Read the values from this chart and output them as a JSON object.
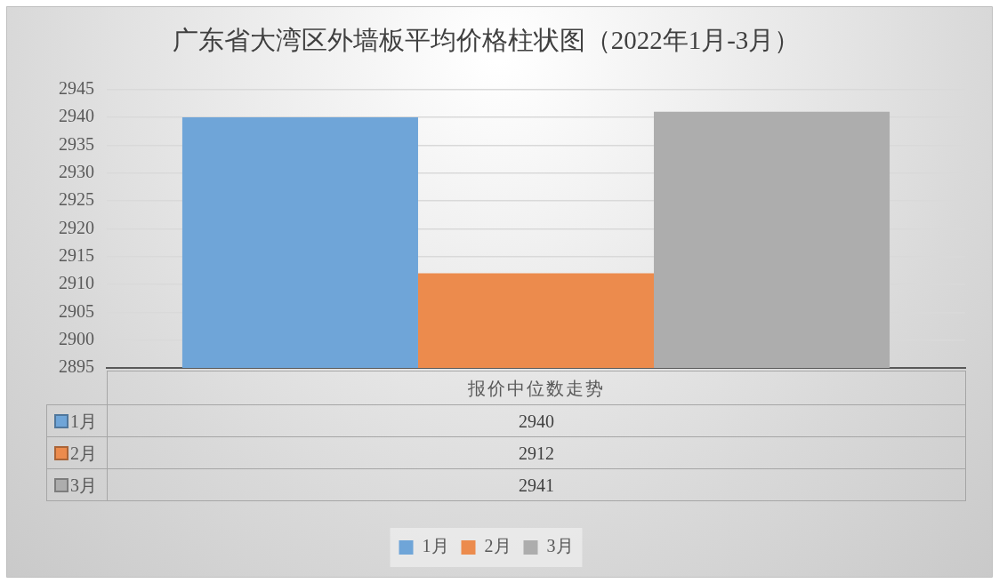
{
  "chart_data": {
    "type": "bar",
    "title": "广东省大湾区外墙板平均价格柱状图（2022年1月-3月）",
    "categories": [
      "报价中位数走势"
    ],
    "series": [
      {
        "name": "1月",
        "color": "#6fa5d8",
        "values": [
          2940
        ]
      },
      {
        "name": "2月",
        "color": "#ec8b4d",
        "values": [
          2912
        ]
      },
      {
        "name": "3月",
        "color": "#adadad",
        "values": [
          2941
        ]
      }
    ],
    "ylim": [
      2895,
      2945
    ],
    "yticks": [
      2895,
      2900,
      2905,
      2910,
      2915,
      2920,
      2925,
      2930,
      2935,
      2940,
      2945
    ],
    "grid": "y",
    "legend": "bottom",
    "annotations": [
      "2940",
      "2912",
      "2941"
    ]
  }
}
